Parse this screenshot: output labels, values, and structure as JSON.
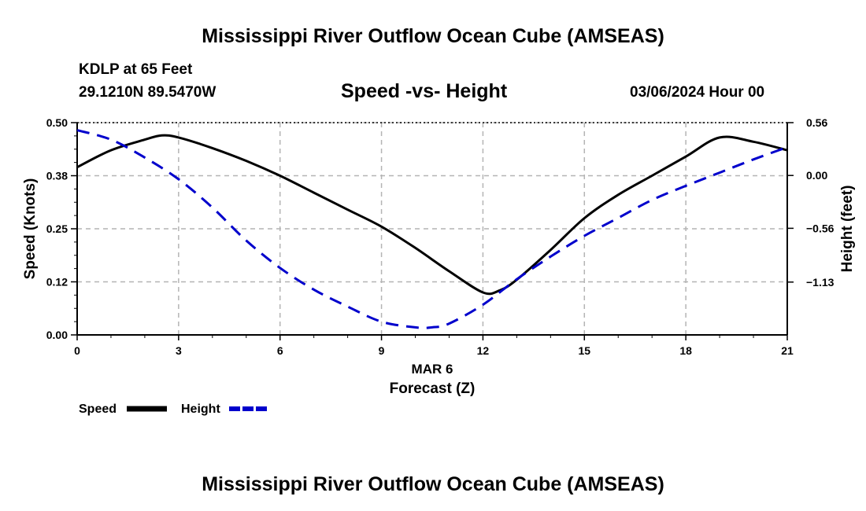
{
  "page": {
    "title": "Mississippi River Outflow Ocean Cube (AMSEAS)",
    "footer_title": "Mississippi River Outflow Ocean Cube (AMSEAS)",
    "station": "KDLP at 65 Feet",
    "coords": "29.1210N  89.5470W",
    "subtitle": "Speed -vs- Height",
    "datetime": "03/06/2024 Hour 00"
  },
  "chart_data": {
    "type": "line",
    "title": "Speed -vs- Height",
    "xlabel": "Forecast (Z)",
    "xlabel_date": "MAR 6",
    "ylabel": "Speed (Knots)",
    "y2label": "Height (feet)",
    "xlim": [
      0,
      21
    ],
    "ylim": [
      0,
      0.5
    ],
    "y2lim": [
      -1.69,
      0.56
    ],
    "x_ticks": [
      0,
      3,
      6,
      9,
      12,
      15,
      18,
      21
    ],
    "x_tick_labels": [
      "0",
      "3",
      "6",
      "9",
      "12",
      "15",
      "18",
      "21"
    ],
    "y_ticks": [
      0,
      0.125,
      0.25,
      0.375,
      0.5
    ],
    "y_tick_labels": [
      "0.00",
      "0.12",
      "0.25",
      "0.38",
      "0.50"
    ],
    "y2_ticks": [
      -1.13,
      -0.56,
      0.0,
      0.56
    ],
    "y2_tick_labels": [
      "−1.13",
      "−0.56",
      "0.00",
      "0.56"
    ],
    "grid": true,
    "legend": {
      "position": "bottom-left",
      "entries": [
        "Speed",
        "Height"
      ]
    },
    "colors": {
      "speed": "#000000",
      "height": "#0000cc",
      "grid": "#b4b4b4"
    },
    "series": [
      {
        "name": "Speed",
        "axis": "left",
        "style": "solid",
        "x": [
          0,
          1,
          2,
          2.5,
          3,
          4,
          5,
          6,
          7,
          8,
          9,
          10,
          11,
          12,
          12.5,
          13,
          14,
          15,
          16,
          17,
          18,
          19,
          20,
          21
        ],
        "values": [
          0.395,
          0.435,
          0.46,
          0.47,
          0.465,
          0.44,
          0.41,
          0.375,
          0.335,
          0.295,
          0.255,
          0.205,
          0.15,
          0.1,
          0.105,
          0.13,
          0.2,
          0.275,
          0.33,
          0.375,
          0.42,
          0.465,
          0.455,
          0.435
        ]
      },
      {
        "name": "Height",
        "axis": "right",
        "style": "dashed",
        "x": [
          0,
          1,
          2,
          3,
          4,
          5,
          6,
          7,
          8,
          9,
          10,
          10.5,
          11,
          12,
          13,
          14,
          15,
          16,
          17,
          18,
          19,
          20,
          21
        ],
        "values": [
          0.48,
          0.38,
          0.19,
          -0.04,
          -0.34,
          -0.69,
          -0.98,
          -1.21,
          -1.39,
          -1.55,
          -1.61,
          -1.61,
          -1.57,
          -1.37,
          -1.1,
          -0.86,
          -0.64,
          -0.45,
          -0.26,
          -0.11,
          0.03,
          0.17,
          0.3
        ]
      }
    ]
  }
}
